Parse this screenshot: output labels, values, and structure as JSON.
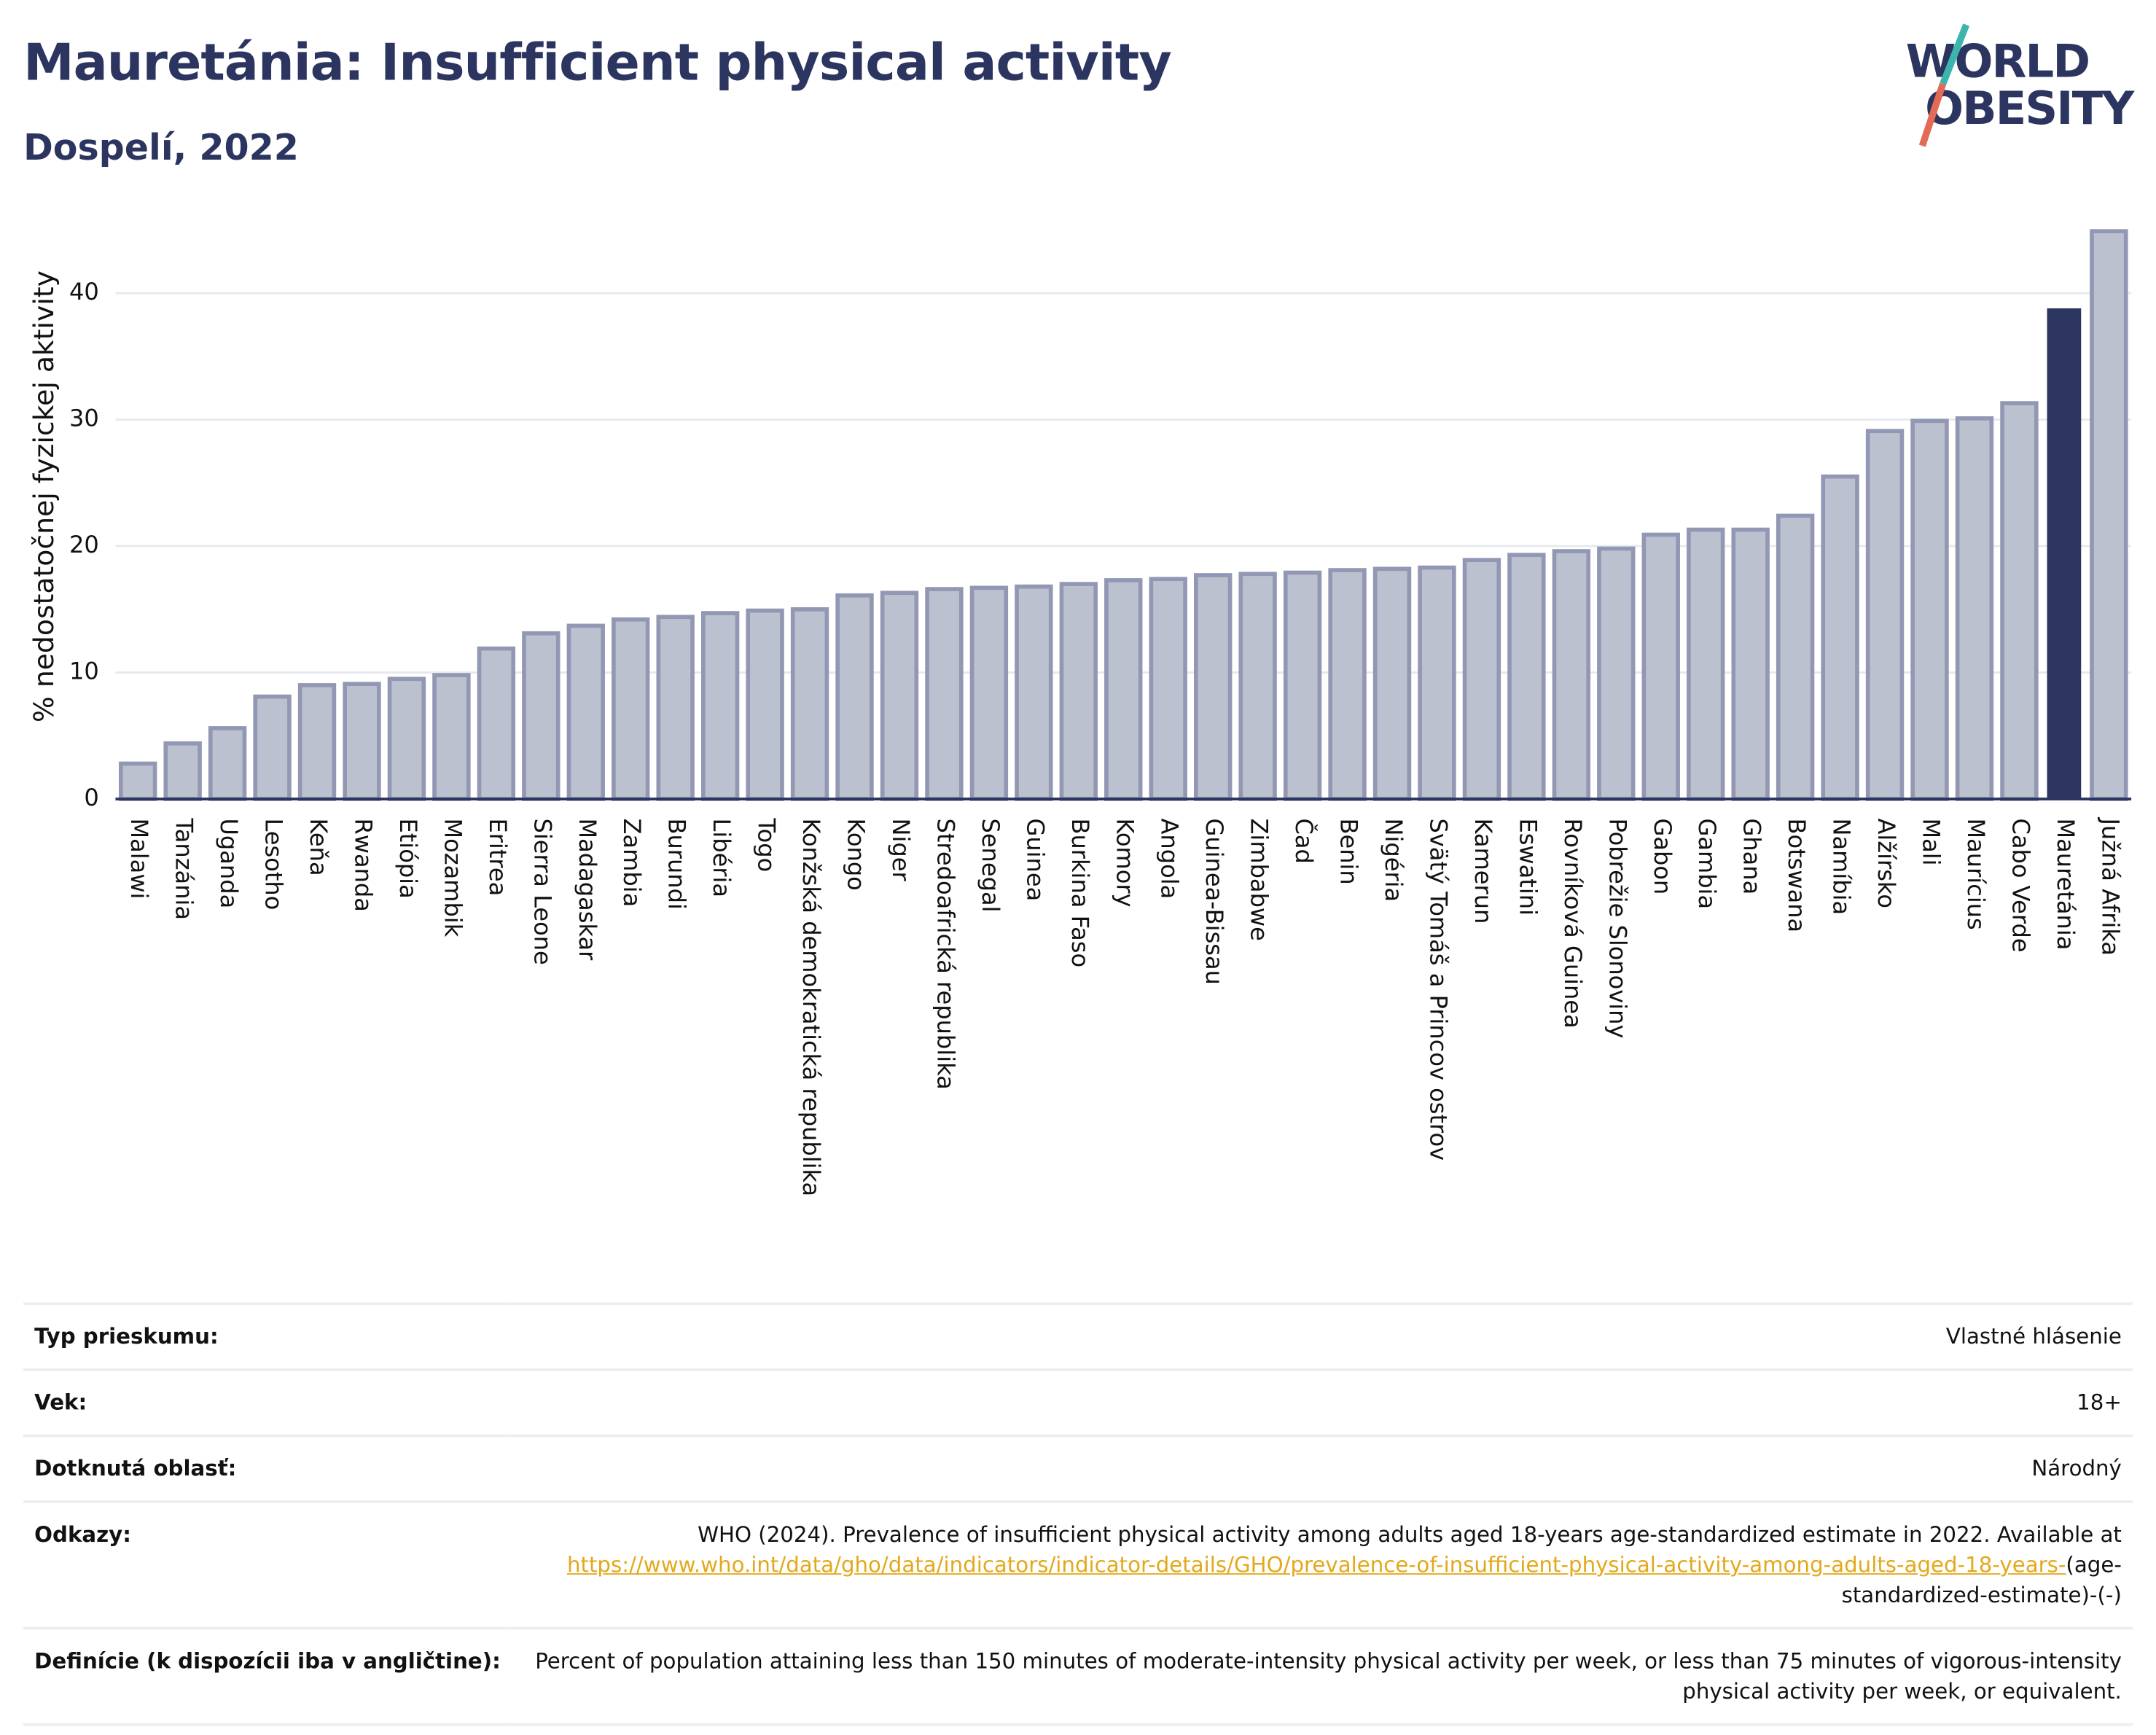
{
  "chart_data": {
    "type": "bar",
    "title": "Mauretánia: Insufficient physical activity",
    "subtitle": "Dospelí, 2022",
    "y_label": "% nedostatočnej fyzickej aktivity",
    "categories": [
      "Malawi",
      "Tanzánia",
      "Uganda",
      "Lesotho",
      "Keňa",
      "Rwanda",
      "Etiópia",
      "Mozambik",
      "Eritrea",
      "Sierra Leone",
      "Madagaskar",
      "Zambia",
      "Burundi",
      "Libéria",
      "Togo",
      "Konžská demokratická republika",
      "Kongo",
      "Niger",
      "Stredoafrická republika",
      "Senegal",
      "Guinea",
      "Burkina Faso",
      "Komory",
      "Angola",
      "Guinea-Bissau",
      "Zimbabwe",
      "Čad",
      "Benin",
      "Nigéria",
      "Svätý Tomáš a Princov ostrov",
      "Kamerun",
      "Eswatini",
      "Rovníková Guinea",
      "Pobrežie Slonoviny",
      "Gabon",
      "Gambia",
      "Ghana",
      "Botswana",
      "Namíbia",
      "Alžírsko",
      "Mali",
      "Maurícius",
      "Cabo Verde",
      "Mauretánia",
      "Južná Afrika"
    ],
    "values": [
      2.8,
      4.4,
      5.6,
      8.1,
      9.0,
      9.1,
      9.5,
      9.8,
      11.9,
      13.1,
      13.7,
      14.2,
      14.4,
      14.7,
      14.9,
      15.0,
      16.1,
      16.3,
      16.6,
      16.7,
      16.8,
      17.0,
      17.3,
      17.4,
      17.7,
      17.8,
      17.9,
      18.1,
      18.2,
      18.3,
      18.9,
      19.3,
      19.6,
      19.8,
      20.9,
      21.3,
      21.3,
      22.4,
      25.5,
      29.1,
      29.9,
      30.1,
      31.3,
      38.8,
      44.9
    ],
    "color": "#bcc1d0",
    "edge_color": "#9298b3",
    "highlight": "Mauretánia",
    "highlight_color": "#2c3560",
    "ylim": [
      0,
      46
    ],
    "yticks": [
      0,
      10,
      20,
      30,
      40
    ],
    "grid": true
  },
  "logo": [
    "WORLD",
    "OBESITY"
  ],
  "table": {
    "rows": [
      [
        "Typ prieskumu:",
        "Vlastné hlásenie"
      ],
      [
        "Vek:",
        "18+"
      ],
      [
        "Dotknutá oblasť:",
        "Národný"
      ],
      [
        "Odkazy:",
        {
          "text": "WHO (2024). Prevalence of insufficient physical activity among adults aged 18-years age-standardized estimate in 2022. Available at",
          "link": "https://www.who.int/data/gho/data/indicators/indicator-details/GHO/prevalence-of-insufficient-physical-activity-among-adults-aged-18-years-",
          "suffix": "(age-standardized-estimate)-(-)"
        }
      ],
      [
        "Definície (k dispozícii iba v angličtine):",
        "Percent of population attaining less than 150 minutes of moderate-intensity physical activity per week, or less than 75 minutes of vigorous-intensity physical activity per week, or equivalent."
      ]
    ]
  }
}
